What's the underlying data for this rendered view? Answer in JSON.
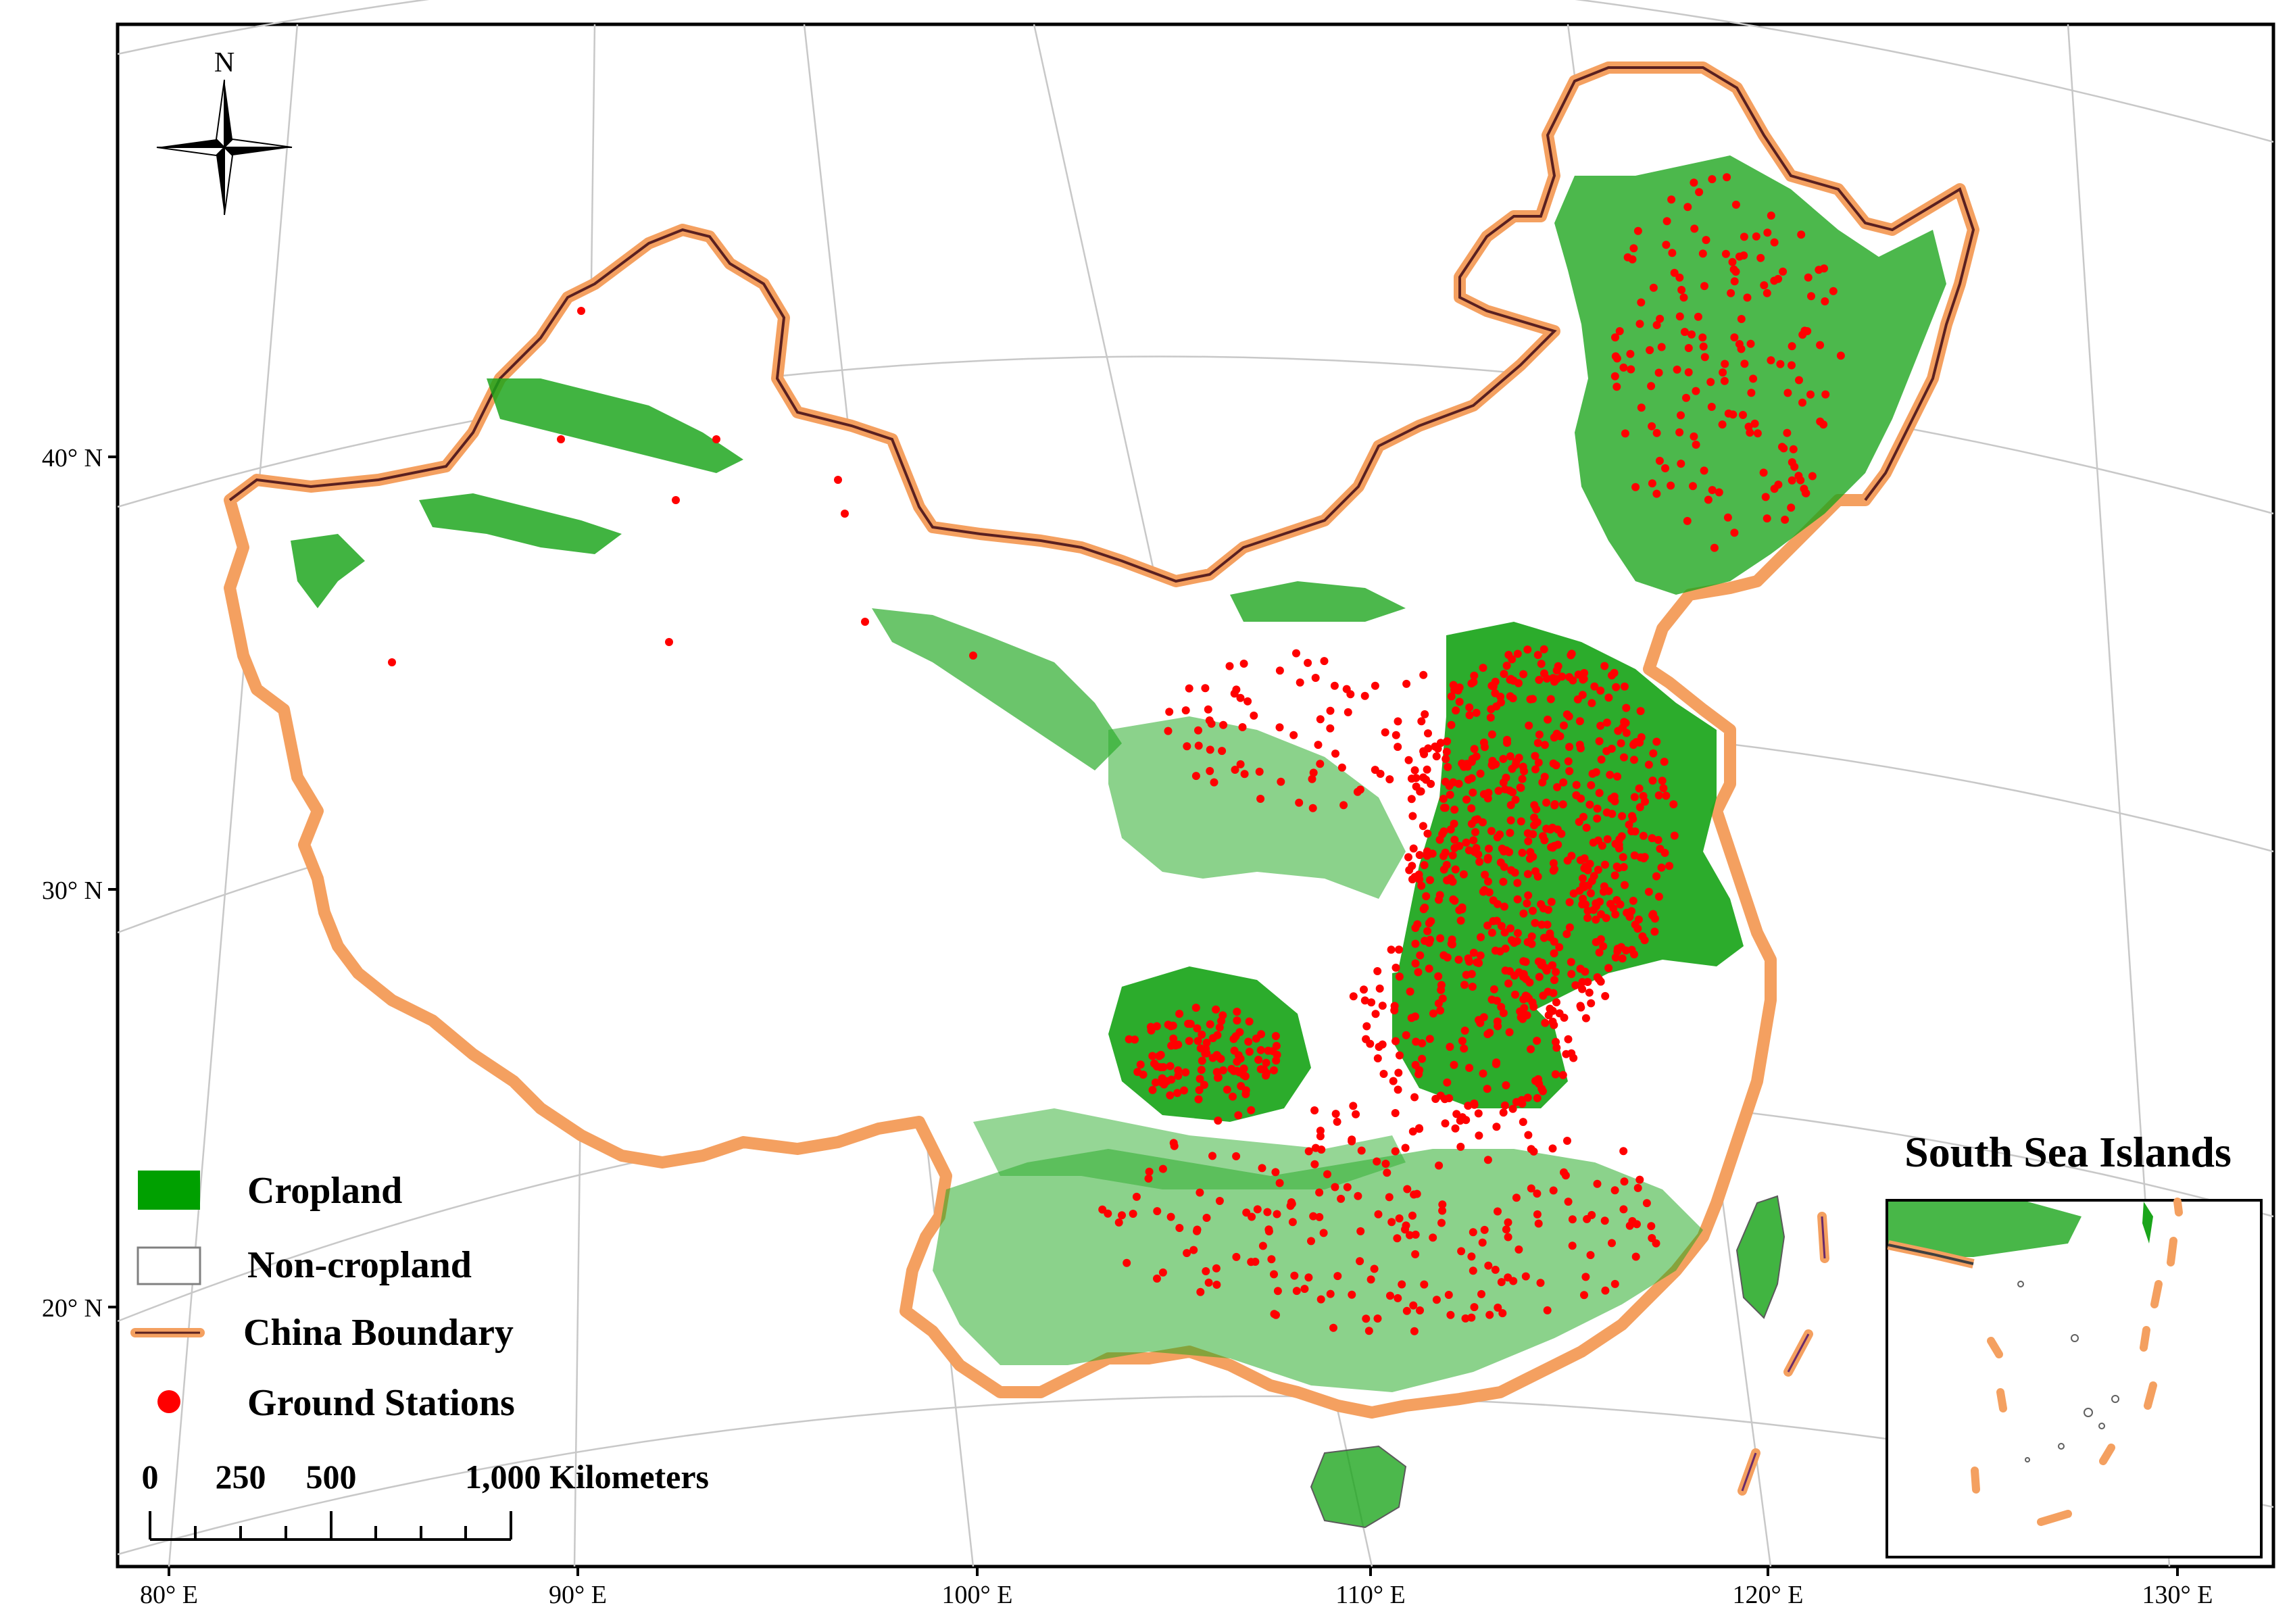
{
  "map": {
    "grid_lat_labels": [
      "40° N",
      "30° N",
      "20° N"
    ],
    "grid_lon_labels": [
      "80° E",
      "90° E",
      "100° E",
      "110° E",
      "120° E",
      "130° E"
    ],
    "north_arrow_label": "N",
    "inset_title": "South Sea Islands",
    "legend": [
      {
        "label": "Cropland",
        "color": "#00a000",
        "symbol": "filled-box"
      },
      {
        "label": "Non-cropland",
        "color": "#ffffff",
        "symbol": "empty-box"
      },
      {
        "label": "China Boundary",
        "color": "#f4a060",
        "symbol": "boundary-line"
      },
      {
        "label": "Ground Stations",
        "color": "#ff0000",
        "symbol": "dot"
      }
    ],
    "scale_bar": {
      "labels": [
        "0",
        "250",
        "500",
        "1,000 Kilometers"
      ]
    },
    "colors": {
      "cropland": "#1aa51a",
      "boundary": "#f4a060",
      "boundary_inner": "#5a2020",
      "station": "#ff0000",
      "graticule": "#c8c8c8",
      "frame": "#000000"
    }
  }
}
